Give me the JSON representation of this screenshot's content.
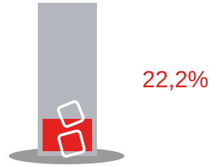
{
  "chart_data": {
    "type": "glass",
    "values": [
      22.2
    ],
    "value_labels": [
      "22,2%"
    ],
    "ylim": [
      0,
      100
    ],
    "color": "#e32320"
  }
}
